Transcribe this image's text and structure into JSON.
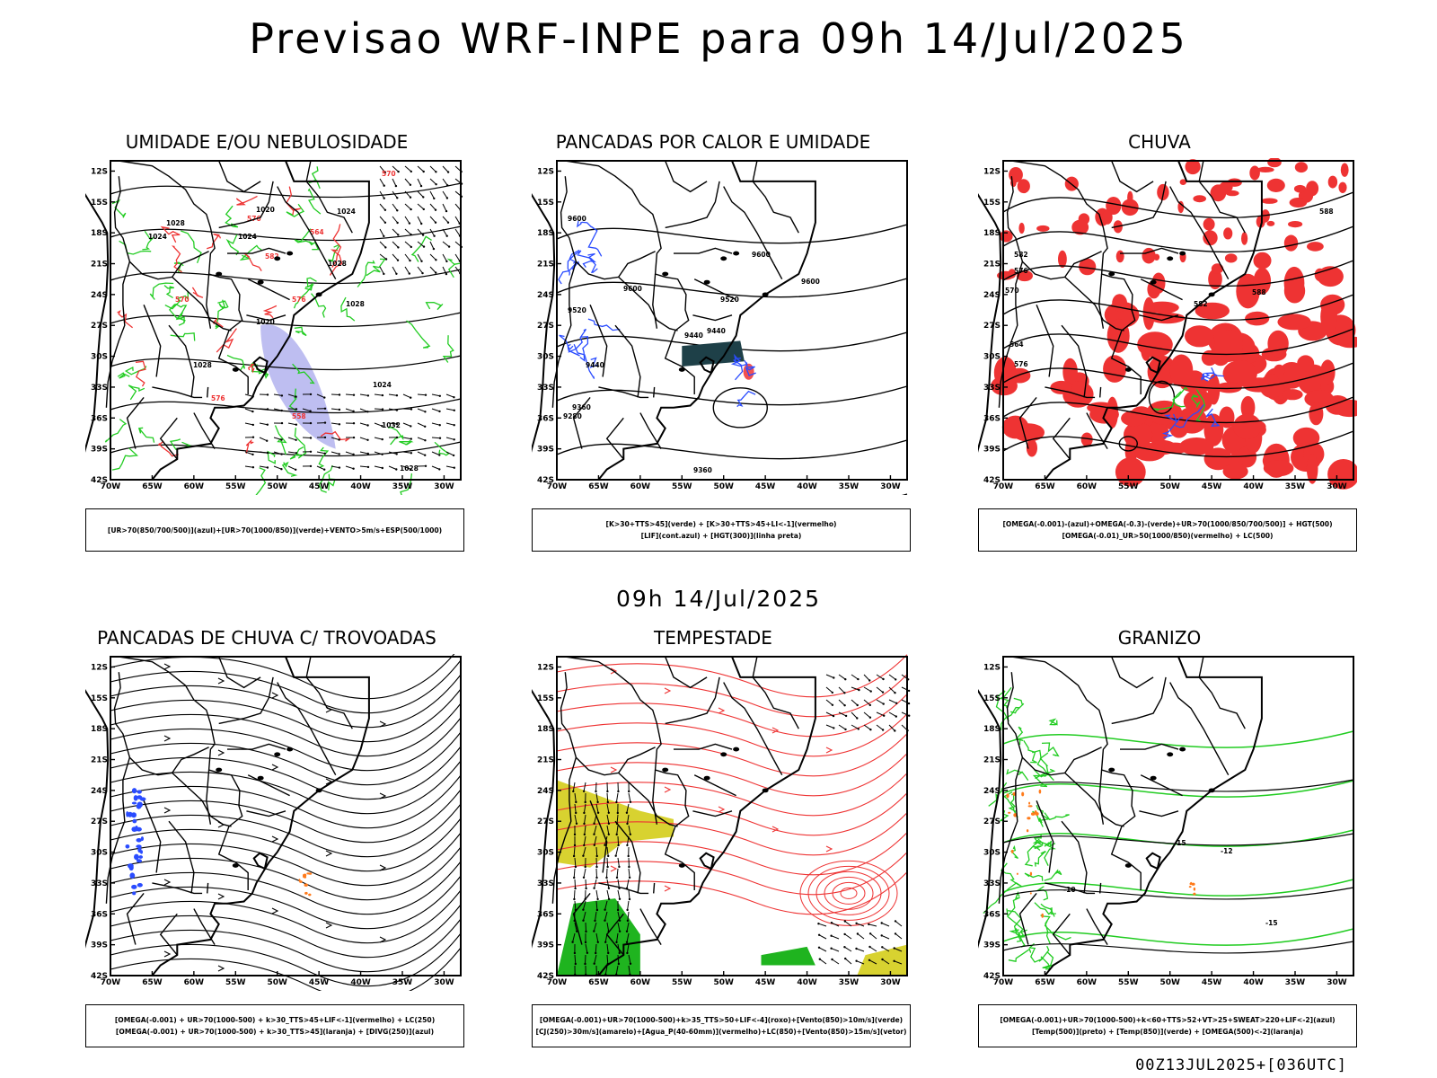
{
  "header": {
    "title": "Previsao WRF-INPE  para 09h 14/Jul/2025",
    "mid_time": "09h 14/Jul/2025",
    "run_info": "00Z13JUL2025+[036UTC]"
  },
  "axes": {
    "lat_labels": [
      "12S",
      "15S",
      "18S",
      "21S",
      "24S",
      "27S",
      "30S",
      "33S",
      "36S",
      "39S",
      "42S"
    ],
    "lon_labels": [
      "70W",
      "65W",
      "60W",
      "55W",
      "50W",
      "45W",
      "40W",
      "35W",
      "30W"
    ]
  },
  "colors": {
    "frame": "#000000",
    "green": "#22cc22",
    "red": "#ee3333",
    "blue": "#2a4cff",
    "lavender": "#b3b3ee",
    "dark_teal": "#1e4048",
    "yellow": "#d8d230",
    "orange": "#ff7a1a"
  },
  "panels": [
    {
      "title": "UMIDADE E/OU NEBULOSIDADE",
      "legend": [
        "[UR>70(850/700/500)](azul)+[UR>70(1000/850)](verde)+VENTO>5m/s+ESP(500/1000)"
      ],
      "contour_labels": [
        "1020",
        "1024",
        "1024",
        "1028",
        "1028",
        "1024",
        "1032",
        "1028",
        "1028",
        "1020",
        "1024",
        "1028"
      ],
      "red_labels": [
        "570",
        "576",
        "582",
        "576",
        "564",
        "570",
        "576",
        "558"
      ]
    },
    {
      "title": "PANCADAS POR CALOR E UMIDADE",
      "legend": [
        "[K>30+TTS>45](verde) + [K>30+TTS>45+LI<-1](vermelho)",
        "[LIF](cont.azul) + [HGT(300)](linha preta)"
      ],
      "contour_labels": [
        "9600",
        "9600",
        "9600",
        "9520",
        "9520",
        "9440",
        "9440",
        "9440",
        "9360",
        "9360",
        "9280",
        "9600"
      ]
    },
    {
      "title": "CHUVA",
      "legend": [
        "[OMEGA(-0.001)-(azul)+OMEGA(-0.3)-(verde)+UR>70(1000/850/700/500)] + HGT(500)",
        "[OMEGA(-0.01)_UR>50(1000/850)(vermelho) + LC(500)"
      ],
      "contour_labels": [
        "588",
        "582",
        "576",
        "570",
        "564",
        "576",
        "582",
        "588"
      ]
    },
    {
      "title": "PANCADAS DE CHUVA C/ TROVOADAS",
      "legend": [
        "[OMEGA(-0.001) + UR>70(1000-500) + k>30_TTS>45+LIF<-1](vermelho) + LC(250)",
        "[OMEGA(-0.001) + UR>70(1000-500) + k>30_TTS>45](laranja) + [DIVG(250)](azul)"
      ]
    },
    {
      "title": "TEMPESTADE",
      "legend": [
        "[OMEGA(-0.001)+UR>70(1000-500)+k>35_TTS>50+LIF<-4](roxo)+[Vento(850)>10m/s](verde)",
        "[CJ(250)>30m/s](amarelo)+[Agua_P(40-60mm)](vermelho)+LC(850)+[Vento(850)>15m/s](vetor)"
      ]
    },
    {
      "title": "GRANIZO",
      "legend": [
        "[OMEGA(-0.001)+UR>70(1000-500)+k<60+TTS>52+VT>25+SWEAT>220+LIF<-2](azul)",
        "[Temp(500)](preto) + [Temp(850)](verde) + [OMEGA(500)<-2](laranja)"
      ],
      "contour_labels": [
        "-15",
        "-12",
        "-15",
        "-10"
      ]
    }
  ]
}
